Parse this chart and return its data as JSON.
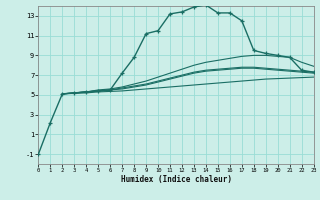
{
  "title": "",
  "xlabel": "Humidex (Indice chaleur)",
  "bg_color": "#cceee8",
  "grid_color": "#99ddd5",
  "line_color": "#1a6e64",
  "xlim": [
    0,
    23
  ],
  "ylim": [
    -2,
    14
  ],
  "yticks": [
    -1,
    1,
    3,
    5,
    7,
    9,
    11,
    13
  ],
  "xticks": [
    0,
    1,
    2,
    3,
    4,
    5,
    6,
    7,
    8,
    9,
    10,
    11,
    12,
    13,
    14,
    15,
    16,
    17,
    18,
    19,
    20,
    21,
    22,
    23
  ],
  "curve_main_x": [
    0,
    1,
    2,
    3,
    4,
    5,
    6,
    7,
    8,
    9,
    10,
    11,
    12,
    13,
    14,
    15,
    16,
    17,
    18,
    19,
    20,
    21,
    22,
    23
  ],
  "curve_main_y": [
    -1.0,
    2.2,
    5.1,
    5.2,
    5.3,
    5.4,
    5.5,
    7.2,
    8.8,
    11.2,
    11.5,
    13.2,
    13.4,
    13.9,
    14.1,
    13.3,
    13.3,
    12.5,
    9.5,
    9.2,
    9.0,
    8.8,
    7.5,
    7.3
  ],
  "curve_line1_x": [
    2,
    3,
    4,
    5,
    6,
    7,
    8,
    9,
    10,
    11,
    12,
    13,
    14,
    15,
    16,
    17,
    18,
    19,
    20,
    21,
    22,
    23
  ],
  "curve_line1_y": [
    5.1,
    5.15,
    5.2,
    5.3,
    5.35,
    5.4,
    5.5,
    5.6,
    5.7,
    5.8,
    5.9,
    6.0,
    6.1,
    6.2,
    6.3,
    6.4,
    6.5,
    6.6,
    6.65,
    6.7,
    6.75,
    6.8
  ],
  "curve_line2_x": [
    2,
    3,
    4,
    5,
    6,
    7,
    8,
    9,
    10,
    11,
    12,
    13,
    14,
    15,
    16,
    17,
    18,
    19,
    20,
    21,
    22,
    23
  ],
  "curve_line2_y": [
    5.1,
    5.2,
    5.3,
    5.4,
    5.5,
    5.6,
    5.8,
    6.0,
    6.3,
    6.6,
    6.9,
    7.2,
    7.4,
    7.5,
    7.6,
    7.7,
    7.7,
    7.6,
    7.5,
    7.4,
    7.3,
    7.2
  ],
  "curve_line3_x": [
    2,
    3,
    4,
    5,
    6,
    7,
    8,
    9,
    10,
    11,
    12,
    13,
    14,
    15,
    16,
    17,
    18,
    19,
    20,
    21,
    22,
    23
  ],
  "curve_line3_y": [
    5.1,
    5.2,
    5.3,
    5.5,
    5.6,
    5.8,
    6.1,
    6.4,
    6.8,
    7.2,
    7.6,
    8.0,
    8.3,
    8.5,
    8.7,
    8.9,
    9.0,
    9.0,
    8.9,
    8.8,
    8.3,
    7.9
  ],
  "curve_line4_x": [
    2,
    3,
    4,
    5,
    6,
    7,
    8,
    9,
    10,
    11,
    12,
    13,
    14,
    15,
    16,
    17,
    18,
    19,
    20,
    21,
    22,
    23
  ],
  "curve_line4_y": [
    5.1,
    5.2,
    5.3,
    5.4,
    5.5,
    5.7,
    5.9,
    6.1,
    6.4,
    6.7,
    7.0,
    7.3,
    7.5,
    7.6,
    7.7,
    7.8,
    7.8,
    7.7,
    7.6,
    7.5,
    7.4,
    7.3
  ]
}
